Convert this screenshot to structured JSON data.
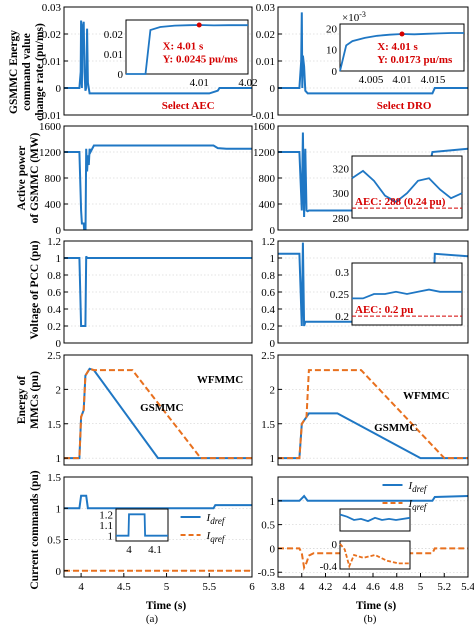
{
  "figure": {
    "ylabels": [
      "GSMMC Energy command value change rate (pu/ms)",
      "Active power of GSMMC (MW)",
      "Voltage of PCC (pu)",
      "Energy of MMCs (pu)",
      "Current commands (pu)"
    ],
    "xlabel": "Time (s)",
    "col_labels": [
      "(a)",
      "(b)"
    ],
    "colors": {
      "blue": "#1f77c4",
      "orange": "#e8701e",
      "red": "#d40000",
      "gray": "#555555"
    }
  },
  "chart_data": [
    {
      "id": "r1-a",
      "type": "line",
      "col": "a",
      "xlim": [
        3.8,
        6
      ],
      "ylim": [
        -0.01,
        0.03
      ],
      "yticks": [
        "0.03",
        "0.02",
        "0.01",
        "0",
        "-0.01"
      ],
      "ytick_values": [
        0.03,
        0.02,
        0.01,
        0,
        -0.01
      ],
      "series": [
        {
          "color": "#1f77c4",
          "x": [
            3.8,
            3.98,
            3.995,
            4.0,
            4.005,
            4.01,
            4.015,
            4.03,
            4.04,
            4.05,
            4.06,
            4.07,
            4.08,
            4.1,
            4.3,
            4.6,
            5.0,
            5.5,
            5.6,
            5.62,
            6.0
          ],
          "y": [
            0,
            0,
            0.006,
            0.025,
            0.005,
            0,
            0.022,
            0.0245,
            0.006,
            -0.001,
            0,
            0.022,
            0.002,
            -0.002,
            -0.002,
            -0.002,
            -0.002,
            -0.002,
            -0.001,
            0,
            0
          ]
        }
      ],
      "annotation": "Select AEC",
      "inset": {
        "xlim": [
          3.995,
          4.02
        ],
        "ylim": [
          0,
          0.027
        ],
        "xticks": [
          "4.01",
          "4.02"
        ],
        "xtick_values": [
          4.01,
          4.02
        ],
        "yticks": [
          "0",
          "0.01",
          "0.02"
        ],
        "ytick_values": [
          0,
          0.01,
          0.02
        ],
        "series": {
          "x": [
            3.995,
            3.997,
            3.999,
            4.0,
            4.002,
            4.005,
            4.008,
            4.01,
            4.013,
            4.016,
            4.02
          ],
          "y": [
            0,
            0,
            0,
            0.022,
            0.0235,
            0.0242,
            0.0244,
            0.0245,
            0.0243,
            0.0244,
            0.0244
          ]
        },
        "point_label": [
          "X: 4.01 s",
          "Y: 0.0245 pu/ms"
        ],
        "point": [
          4.01,
          0.0245
        ]
      }
    },
    {
      "id": "r1-b",
      "type": "line",
      "col": "b",
      "xlim": [
        3.8,
        5.4
      ],
      "ylim": [
        -0.01,
        0.03
      ],
      "yticks": [
        "0.03",
        "0.02",
        "0.01",
        "0",
        "-0.01"
      ],
      "ytick_values": [
        0.03,
        0.02,
        0.01,
        0,
        -0.01
      ],
      "series": [
        {
          "color": "#1f77c4",
          "x": [
            3.8,
            3.98,
            3.995,
            4.0,
            4.005,
            4.01,
            4.02,
            4.03,
            4.05,
            4.1,
            4.5,
            4.9,
            5.1,
            5.12,
            5.4
          ],
          "y": [
            0,
            0,
            0.01,
            0.028,
            0.0,
            0.012,
            0.008,
            -0.001,
            -0.002,
            -0.002,
            -0.002,
            -0.002,
            -0.002,
            0,
            0
          ]
        }
      ],
      "annotation": "Select DRO",
      "inset": {
        "xlim": [
          4.0,
          4.02
        ],
        "ylim": [
          0,
          22
        ],
        "ylabel_exp": "×10",
        "ylabel_exp_power": "-3",
        "xticks": [
          "4.005",
          "4.01",
          "4.015"
        ],
        "xtick_values": [
          4.005,
          4.01,
          4.015
        ],
        "yticks": [
          "0",
          "10",
          "20"
        ],
        "ytick_values": [
          0,
          10,
          20
        ],
        "series": {
          "x": [
            4.0,
            4.001,
            4.002,
            4.004,
            4.006,
            4.008,
            4.01,
            4.012,
            4.014,
            4.016,
            4.018,
            4.02
          ],
          "y": [
            0,
            12,
            14,
            15.5,
            16.5,
            17,
            17.3,
            17.2,
            17.4,
            17.6,
            17.8,
            17.8
          ]
        },
        "point_label": [
          "X: 4.01 s",
          "Y: 0.0173 pu/ms"
        ],
        "point": [
          4.01,
          17.3
        ]
      }
    },
    {
      "id": "r2-a",
      "type": "line",
      "col": "a",
      "xlim": [
        3.8,
        6
      ],
      "ylim": [
        0,
        1600
      ],
      "yticks": [
        "1600",
        "1200",
        "800",
        "400",
        "0"
      ],
      "ytick_values": [
        1600,
        1200,
        800,
        400,
        0
      ],
      "series": [
        {
          "color": "#1f77c4",
          "x": [
            3.8,
            3.98,
            4.0,
            4.01,
            4.03,
            4.05,
            4.06,
            4.07,
            4.08,
            4.09,
            4.1,
            4.11,
            4.15,
            4.2,
            4.3,
            5.0,
            5.55,
            5.6,
            5.7,
            6.0
          ],
          "y": [
            1200,
            1200,
            300,
            100,
            100,
            -250,
            1250,
            900,
            1150,
            1000,
            1250,
            1200,
            1300,
            1300,
            1300,
            1300,
            1300,
            1260,
            1250,
            1250
          ]
        }
      ]
    },
    {
      "id": "r2-b",
      "type": "line",
      "col": "b",
      "xlim": [
        3.8,
        5.4
      ],
      "ylim": [
        0,
        1600
      ],
      "yticks": [
        "1600",
        "1200",
        "800",
        "400",
        "0"
      ],
      "ytick_values": [
        1600,
        1200,
        800,
        400,
        0
      ],
      "series": [
        {
          "color": "#1f77c4",
          "x": [
            3.8,
            3.98,
            4.0,
            4.01,
            4.02,
            4.03,
            4.04,
            4.05,
            4.06,
            4.1,
            4.2,
            4.3,
            4.4,
            4.5,
            4.6,
            4.7,
            4.8,
            4.9,
            5.0,
            5.1,
            5.4
          ],
          "y": [
            1200,
            1200,
            300,
            1500,
            200,
            1250,
            300,
            290,
            300,
            300,
            300,
            300,
            300,
            300,
            300,
            300,
            300,
            300,
            300,
            1200,
            1250
          ]
        }
      ],
      "inset": {
        "xlim": [
          4.0,
          4.3
        ],
        "ylim": [
          280,
          330
        ],
        "yticks": [
          "320",
          "300",
          "280"
        ],
        "ytick_values": [
          320,
          300,
          280
        ],
        "series": {
          "x": [
            4.0,
            4.03,
            4.06,
            4.09,
            4.12,
            4.15,
            4.18,
            4.21,
            4.24,
            4.27,
            4.3
          ],
          "y": [
            312,
            318,
            310,
            298,
            293,
            300,
            310,
            312,
            303,
            296,
            300
          ]
        },
        "reference": {
          "y": 288,
          "label": "AEC: 288 (0.24 pu)"
        }
      }
    },
    {
      "id": "r3-a",
      "type": "line",
      "col": "a",
      "xlim": [
        3.8,
        6
      ],
      "ylim": [
        0,
        1.2
      ],
      "yticks": [
        "1.2",
        "1",
        "0.8",
        "0.6",
        "0.4",
        "0.2",
        "0"
      ],
      "ytick_values": [
        1.2,
        1,
        0.8,
        0.6,
        0.4,
        0.2,
        0
      ],
      "series": [
        {
          "color": "#1f77c4",
          "x": [
            3.8,
            3.98,
            4.0,
            4.01,
            4.05,
            4.06,
            4.07,
            4.1,
            6.0
          ],
          "y": [
            1.0,
            1.0,
            0.2,
            0.2,
            0.2,
            1.02,
            1.0,
            1.0,
            1.0
          ]
        }
      ]
    },
    {
      "id": "r3-b",
      "type": "line",
      "col": "b",
      "xlim": [
        3.8,
        5.4
      ],
      "ylim": [
        0,
        1.2
      ],
      "yticks": [
        "1.2",
        "1",
        "0.8",
        "0.6",
        "0.4",
        "0.2",
        "0"
      ],
      "ytick_values": [
        1.2,
        1,
        0.8,
        0.6,
        0.4,
        0.2,
        0
      ],
      "series": [
        {
          "color": "#1f77c4",
          "x": [
            3.8,
            3.98,
            4.0,
            4.01,
            4.02,
            4.03,
            4.05,
            4.1,
            4.5,
            5.0,
            5.1,
            5.12,
            5.4
          ],
          "y": [
            1.05,
            1.05,
            0.2,
            1.18,
            0.2,
            0.25,
            0.25,
            0.25,
            0.25,
            0.25,
            0.25,
            1.05,
            1.02
          ]
        }
      ],
      "inset": {
        "xlim": [
          4.0,
          4.3
        ],
        "ylim": [
          0.18,
          0.32
        ],
        "yticks": [
          "0.3",
          "0.25",
          "0.2"
        ],
        "ytick_values": [
          0.3,
          0.25,
          0.2
        ],
        "series": {
          "x": [
            4.0,
            4.03,
            4.06,
            4.09,
            4.12,
            4.15,
            4.18,
            4.21,
            4.24,
            4.27,
            4.3
          ],
          "y": [
            0.24,
            0.24,
            0.25,
            0.25,
            0.255,
            0.25,
            0.255,
            0.26,
            0.255,
            0.255,
            0.255
          ]
        },
        "reference": {
          "y": 0.2,
          "label": "AEC: 0.2 pu"
        }
      }
    },
    {
      "id": "r4-a",
      "type": "line",
      "col": "a",
      "xlim": [
        3.8,
        6
      ],
      "ylim": [
        0.9,
        2.5
      ],
      "yticks": [
        "2.5",
        "2",
        "1.5",
        "1"
      ],
      "ytick_values": [
        2.5,
        2,
        1.5,
        1
      ],
      "series": [
        {
          "name": "GSMMC",
          "color": "#1f77c4",
          "x": [
            3.8,
            3.98,
            4.0,
            4.03,
            4.05,
            4.1,
            4.15,
            4.9,
            6.0
          ],
          "y": [
            1,
            1,
            1.6,
            1.7,
            2.2,
            2.3,
            2.28,
            1,
            1
          ]
        },
        {
          "name": "WFMMC",
          "color": "#e8701e",
          "dashed": true,
          "x": [
            3.8,
            3.98,
            4.0,
            4.03,
            4.05,
            4.1,
            4.15,
            4.6,
            5.4,
            6.0
          ],
          "y": [
            1,
            1,
            1.6,
            1.7,
            2.2,
            2.3,
            2.28,
            2.28,
            1,
            1
          ]
        }
      ]
    },
    {
      "id": "r4-b",
      "type": "line",
      "col": "b",
      "xlim": [
        3.8,
        5.4
      ],
      "ylim": [
        0.9,
        2.5
      ],
      "yticks": [
        "2.5",
        "2",
        "1.5",
        "1"
      ],
      "ytick_values": [
        2.5,
        2,
        1.5,
        1
      ],
      "series": [
        {
          "name": "GSMMC",
          "color": "#1f77c4",
          "x": [
            3.8,
            3.98,
            4.0,
            4.04,
            4.06,
            4.1,
            4.3,
            5.0,
            5.4
          ],
          "y": [
            1,
            1,
            1.5,
            1.6,
            1.65,
            1.65,
            1.65,
            1,
            1
          ]
        },
        {
          "name": "WFMMC",
          "color": "#e8701e",
          "dashed": true,
          "x": [
            3.8,
            3.98,
            4.0,
            4.04,
            4.06,
            4.1,
            4.5,
            5.2,
            5.4
          ],
          "y": [
            1,
            1,
            1.5,
            1.6,
            2.28,
            2.28,
            2.28,
            1,
            1
          ]
        }
      ]
    },
    {
      "id": "r5-a",
      "type": "line",
      "col": "a",
      "xlim": [
        3.8,
        6
      ],
      "ylim": [
        -0.1,
        1.5
      ],
      "xticks": [
        "4",
        "4.5",
        "5",
        "5.5",
        "6"
      ],
      "xtick_values": [
        4,
        4.5,
        5,
        5.5,
        6
      ],
      "yticks": [
        "1.5",
        "1",
        "0.5",
        "0"
      ],
      "ytick_values": [
        1.5,
        1,
        0.5,
        0
      ],
      "series": [
        {
          "name": "I_dref",
          "color": "#1f77c4",
          "x": [
            3.8,
            3.98,
            4.0,
            4.06,
            4.08,
            4.1,
            5.55,
            5.57,
            6.0
          ],
          "y": [
            1,
            1,
            1.2,
            1.2,
            1.0,
            1.0,
            1.0,
            1.05,
            1.05
          ]
        },
        {
          "name": "I_qref",
          "color": "#e8701e",
          "dashed": true,
          "x": [
            3.8,
            6.0
          ],
          "y": [
            0,
            0
          ]
        }
      ],
      "legend": [
        "I_dref",
        "I_qref"
      ],
      "inset": {
        "xlim": [
          3.95,
          4.15
        ],
        "ylim": [
          0.95,
          1.25
        ],
        "xticks": [
          "4",
          "4.1"
        ],
        "xtick_values": [
          4,
          4.1
        ],
        "yticks": [
          "1.2",
          "1.1",
          "1"
        ],
        "ytick_values": [
          1.2,
          1.1,
          1
        ],
        "series": {
          "x": [
            3.95,
            3.998,
            4.0,
            4.06,
            4.062,
            4.15
          ],
          "y": [
            1,
            1,
            1.2,
            1.2,
            1,
            1
          ]
        }
      }
    },
    {
      "id": "r5-b",
      "type": "line",
      "col": "b",
      "xlim": [
        3.8,
        5.4
      ],
      "ylim": [
        -0.6,
        1.5
      ],
      "xticks": [
        "3.8",
        "4",
        "4.2",
        "4.4",
        "4.6",
        "4.8",
        "5",
        "5.2",
        "5.4"
      ],
      "xtick_values": [
        3.8,
        4,
        4.2,
        4.4,
        4.6,
        4.8,
        5,
        5.2,
        5.4
      ],
      "yticks": [
        "1",
        "0.5",
        "0",
        "-0.5"
      ],
      "ytick_values": [
        1,
        0.5,
        0,
        -0.5
      ],
      "series": [
        {
          "name": "I_dref",
          "color": "#1f77c4",
          "x": [
            3.8,
            3.98,
            4.0,
            4.02,
            4.05,
            4.1,
            4.3,
            5.0,
            5.1,
            5.12,
            5.4
          ],
          "y": [
            1,
            1,
            1.05,
            1.1,
            1.0,
            1.0,
            1.0,
            1.0,
            1.0,
            1.08,
            1.1
          ]
        },
        {
          "name": "I_qref",
          "color": "#e8701e",
          "dashed": true,
          "x": [
            3.8,
            3.98,
            4.0,
            4.02,
            4.04,
            4.06,
            4.1,
            4.5,
            5.0,
            5.1,
            5.12,
            5.4
          ],
          "y": [
            0,
            0,
            -0.1,
            -0.4,
            -0.3,
            -0.15,
            -0.1,
            -0.1,
            -0.1,
            -0.1,
            0,
            0
          ]
        }
      ],
      "legend": [
        "I_dref",
        "I_qref"
      ],
      "inset": {
        "xlim": [
          4.0,
          4.3
        ],
        "ylim": [
          0.95,
          1.15
        ],
        "series": {
          "x": [
            4.0,
            4.03,
            4.06,
            4.09,
            4.12,
            4.15,
            4.18,
            4.21,
            4.24,
            4.3
          ],
          "y": [
            1.1,
            1.08,
            1.05,
            1.06,
            1.04,
            1.07,
            1.05,
            1.06,
            1.05,
            1.07
          ]
        }
      },
      "inset2": {
        "xlim": [
          4.0,
          4.3
        ],
        "ylim": [
          -0.45,
          0.05
        ],
        "yticks": [
          "0",
          "-0.4"
        ],
        "ytick_values": [
          0,
          -0.4
        ],
        "series": {
          "x": [
            4.0,
            4.02,
            4.04,
            4.06,
            4.1,
            4.15,
            4.2,
            4.25,
            4.3
          ],
          "y": [
            0,
            -0.1,
            -0.4,
            -0.2,
            -0.25,
            -0.2,
            -0.3,
            -0.35,
            -0.35
          ]
        }
      }
    }
  ]
}
